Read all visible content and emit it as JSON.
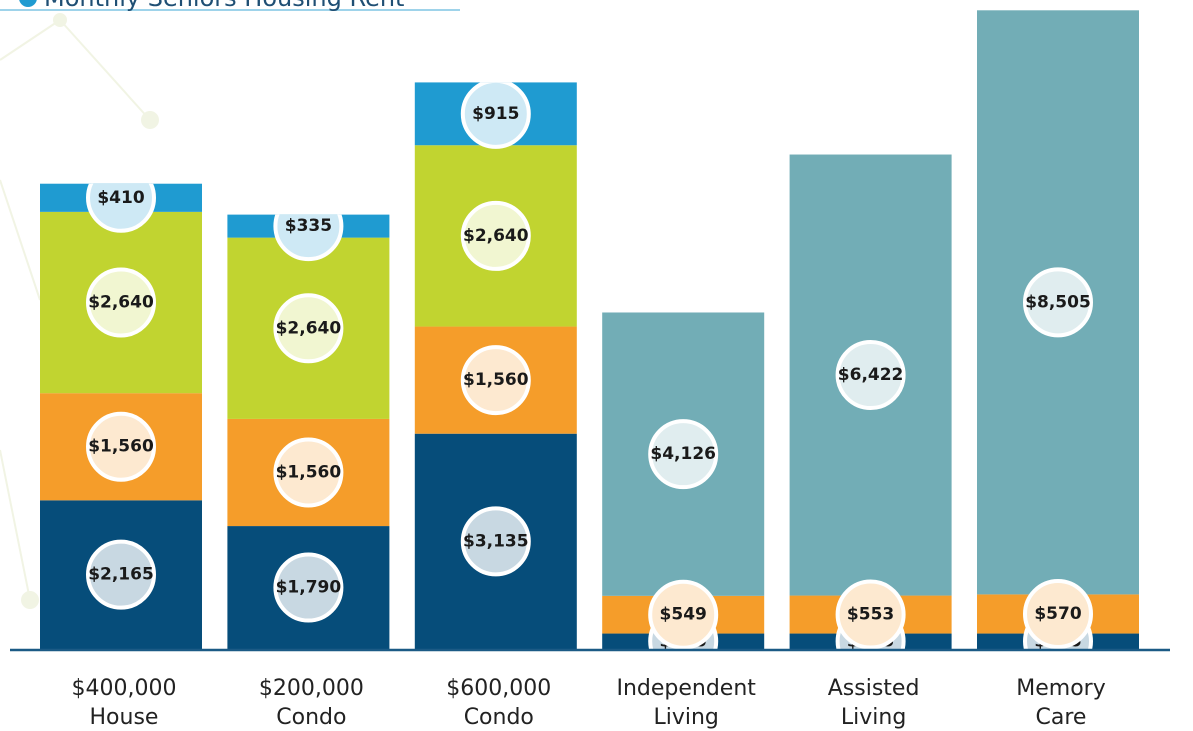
{
  "chart_data": {
    "type": "stacked_bar",
    "title": "Monthly Seniors Housing Rent",
    "categories": [
      [
        "$400,000",
        "House"
      ],
      [
        "$200,000",
        "Condo"
      ],
      [
        "$600,000",
        "Condo"
      ],
      [
        "Independent",
        "Living"
      ],
      [
        "Assisted",
        "Living"
      ],
      [
        "Memory",
        "Care"
      ]
    ],
    "ylim": [
      0,
      9450
    ],
    "series": [
      {
        "color": "#064d7a",
        "values": [
          2165,
          1790,
          3135,
          225,
          225,
          225
        ],
        "value_labels": [
          "$2,165",
          "$1,790",
          "$3,135",
          "$225",
          "$225",
          "$225"
        ]
      },
      {
        "color": "#f59d2a",
        "values": [
          1560,
          1560,
          1560,
          549,
          553,
          570
        ],
        "value_labels": [
          "$1,560",
          "$1,560",
          "$1,560",
          "$549",
          "$553",
          "$570"
        ]
      },
      {
        "color": "#c1d430",
        "values": [
          2640,
          2640,
          2640,
          null,
          null,
          null
        ],
        "value_labels": [
          "$2,640",
          "$2,640",
          "$2,640",
          null,
          null,
          null
        ]
      },
      {
        "color": "#1f9bd1",
        "values": [
          410,
          335,
          915,
          null,
          null,
          null
        ],
        "value_labels": [
          "$410",
          "$335",
          "$915",
          null,
          null,
          null
        ]
      },
      {
        "color": "#72adb6",
        "values": [
          null,
          null,
          null,
          4126,
          6422,
          8505
        ],
        "value_labels": [
          null,
          null,
          null,
          "$4,126",
          "$6,422",
          "$8,505"
        ]
      }
    ]
  }
}
